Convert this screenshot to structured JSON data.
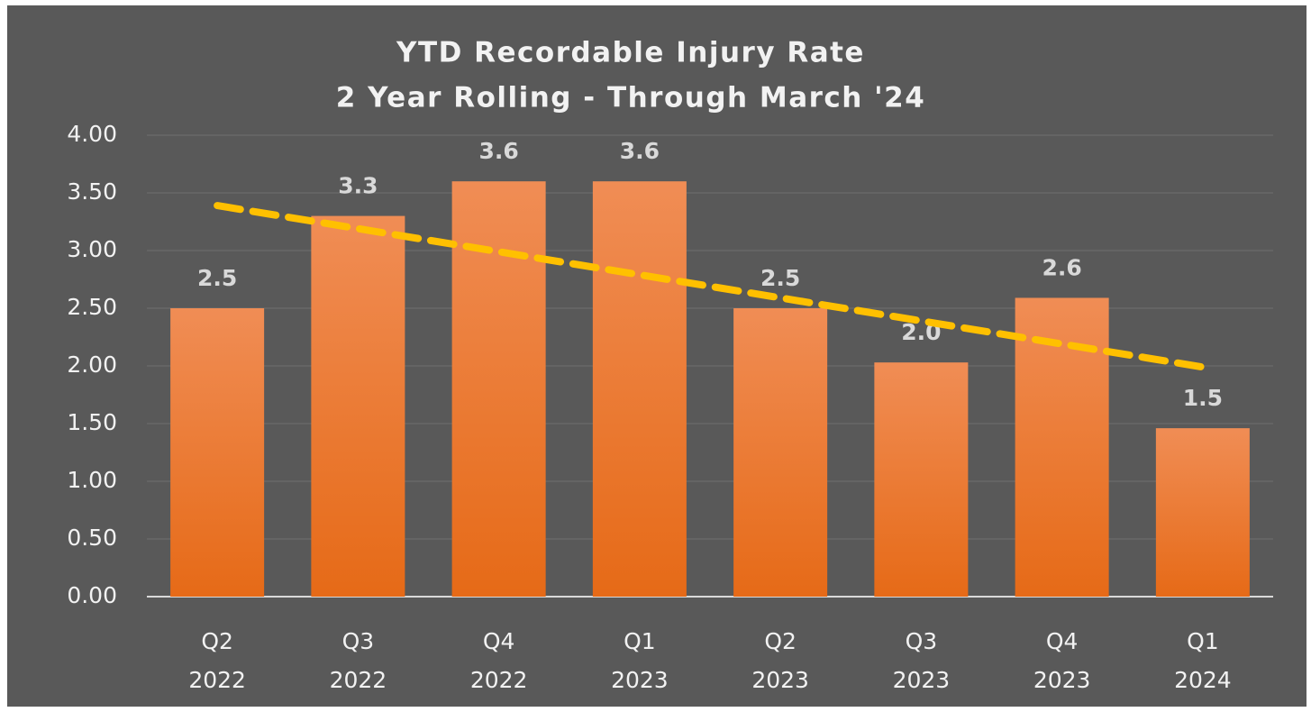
{
  "chart_data": {
    "type": "bar",
    "title": [
      "YTD Recordable Injury Rate",
      "2 Year Rolling - Through March '24"
    ],
    "categories": [
      [
        "Q2",
        "2022"
      ],
      [
        "Q3",
        "2022"
      ],
      [
        "Q4",
        "2022"
      ],
      [
        "Q1",
        "2023"
      ],
      [
        "Q2",
        "2023"
      ],
      [
        "Q3",
        "2023"
      ],
      [
        "Q4",
        "2023"
      ],
      [
        "Q1",
        "2024"
      ]
    ],
    "values": [
      2.5,
      3.3,
      3.6,
      3.6,
      2.5,
      2.03,
      2.59,
      1.46
    ],
    "value_labels": [
      "2.5",
      "3.3",
      "3.6",
      "3.6",
      "2.5",
      "2.0",
      "2.6",
      "1.5"
    ],
    "color": "#ee7a30",
    "trendline": {
      "start": 3.39,
      "end": 1.99,
      "color": "#ffc000"
    },
    "ylim": [
      0,
      4
    ],
    "yticks": [
      {
        "value": 0,
        "label": "0.00"
      },
      {
        "value": 0.5,
        "label": "0.50"
      },
      {
        "value": 1,
        "label": "1.00"
      },
      {
        "value": 1.5,
        "label": "1.50"
      },
      {
        "value": 2,
        "label": "2.00"
      },
      {
        "value": 2.5,
        "label": "2.50"
      },
      {
        "value": 3,
        "label": "3.00"
      },
      {
        "value": 3.5,
        "label": "3.50"
      },
      {
        "value": 4,
        "label": "4.00"
      }
    ],
    "grid": true
  }
}
